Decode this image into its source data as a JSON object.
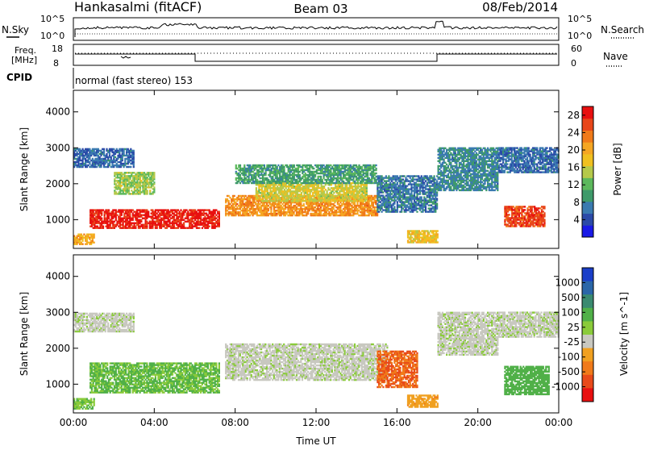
{
  "header": {
    "station": "Hankasalmi (fitACF)",
    "beam": "Beam 03",
    "date": "08/Feb/2014"
  },
  "noise_panel": {
    "left_label": "N.Sky",
    "right_label": "N.Search",
    "ticks_left": [
      "10^5",
      "10^0"
    ],
    "ticks_right": [
      "10^5",
      "10^0"
    ]
  },
  "freq_panel": {
    "left_label_1": "Freq.",
    "left_label_2": "[MHz]",
    "right_label": "Nave",
    "ticks_left": [
      "18",
      "8"
    ],
    "ticks_right": [
      "60",
      "0"
    ]
  },
  "cpid_panel": {
    "label": "CPID",
    "text": "normal (fast stereo) 153"
  },
  "colors": {
    "power_scale": [
      "#1a1ae6",
      "#2b4aa8",
      "#3a7ab0",
      "#3e9a6a",
      "#5cb85c",
      "#b5c94a",
      "#f0c020",
      "#f5a623",
      "#f07a1a",
      "#e8461a",
      "#e81010"
    ],
    "velocity_scale": [
      "#1a3ec8",
      "#2a66a8",
      "#3a8a70",
      "#50b048",
      "#8acb3a",
      "#c8c8c0",
      "#f0a020",
      "#f07a1a",
      "#e84a1a",
      "#e81010"
    ],
    "ground_scatter": "#c8c8c0"
  },
  "chart_data": [
    {
      "type": "heatmap",
      "title": "",
      "ylabel": "Slant Range [km]",
      "xlabel": "",
      "x_ticks": [
        "00:00",
        "04:00",
        "08:00",
        "12:00",
        "16:00",
        "20:00",
        "00:00"
      ],
      "y_ticks": [
        1000,
        2000,
        3000,
        4000
      ],
      "ylim": [
        200,
        4600
      ],
      "xlim_hours": [
        0,
        24
      ],
      "colorbar_label": "Power [dB]",
      "colorbar_ticks": [
        4,
        8,
        12,
        16,
        20,
        24,
        28
      ],
      "colorbar_range": [
        0,
        30
      ],
      "echo_regions": [
        {
          "t0": 0.8,
          "t1": 7.2,
          "r0": 750,
          "r1": 1250,
          "value": 28
        },
        {
          "t0": 7.5,
          "t1": 15.0,
          "r0": 1100,
          "r1": 1650,
          "value": 22
        },
        {
          "t0": 9.0,
          "t1": 14.5,
          "r0": 1500,
          "r1": 2000,
          "value": 16
        },
        {
          "t0": 0.0,
          "t1": 3.0,
          "r0": 2450,
          "r1": 2950,
          "value": 6
        },
        {
          "t0": 2.0,
          "t1": 4.0,
          "r0": 1700,
          "r1": 2300,
          "value": 14
        },
        {
          "t0": 8.0,
          "t1": 15.0,
          "r0": 2000,
          "r1": 2500,
          "value": 10
        },
        {
          "t0": 15.0,
          "t1": 18.0,
          "r0": 1200,
          "r1": 2200,
          "value": 7
        },
        {
          "t0": 16.5,
          "t1": 18.0,
          "r0": 350,
          "r1": 700,
          "value": 18
        },
        {
          "t0": 18.0,
          "t1": 21.0,
          "r0": 1800,
          "r1": 3000,
          "value": 8
        },
        {
          "t0": 21.0,
          "t1": 24.0,
          "r0": 2300,
          "r1": 3000,
          "value": 6
        },
        {
          "t0": 21.3,
          "t1": 23.3,
          "r0": 800,
          "r1": 1350,
          "value": 26
        },
        {
          "t0": 0.0,
          "t1": 1.0,
          "r0": 300,
          "r1": 600,
          "value": 20
        }
      ]
    },
    {
      "type": "heatmap",
      "title": "",
      "ylabel": "Slant Range [km]",
      "xlabel": "Time UT",
      "x_ticks": [
        "00:00",
        "04:00",
        "08:00",
        "12:00",
        "16:00",
        "20:00",
        "00:00"
      ],
      "y_ticks": [
        1000,
        2000,
        3000,
        4000
      ],
      "ylim": [
        200,
        4600
      ],
      "xlim_hours": [
        0,
        24
      ],
      "colorbar_label": "Velocity [m s^-1]",
      "colorbar_ticks": [
        "1000",
        "500",
        "100",
        "25",
        "-25",
        "-100",
        "-500",
        "-1000"
      ],
      "echo_regions": [
        {
          "t0": 0.8,
          "t1": 7.2,
          "r0": 750,
          "r1": 1600,
          "value": 150
        },
        {
          "t0": 7.5,
          "t1": 15.5,
          "r0": 1100,
          "r1": 2100,
          "value": 0
        },
        {
          "t0": 0.0,
          "t1": 3.0,
          "r0": 2450,
          "r1": 2950,
          "value": 0
        },
        {
          "t0": 15.0,
          "t1": 17.0,
          "r0": 900,
          "r1": 1900,
          "value": -600
        },
        {
          "t0": 16.5,
          "t1": 18.0,
          "r0": 350,
          "r1": 700,
          "value": -200
        },
        {
          "t0": 18.0,
          "t1": 21.0,
          "r0": 1800,
          "r1": 3000,
          "value": 0
        },
        {
          "t0": 21.0,
          "t1": 24.0,
          "r0": 2300,
          "r1": 3000,
          "value": 0
        },
        {
          "t0": 21.3,
          "t1": 23.5,
          "r0": 700,
          "r1": 1500,
          "value": 300
        },
        {
          "t0": 0.0,
          "t1": 1.0,
          "r0": 300,
          "r1": 600,
          "value": 100
        }
      ]
    }
  ]
}
